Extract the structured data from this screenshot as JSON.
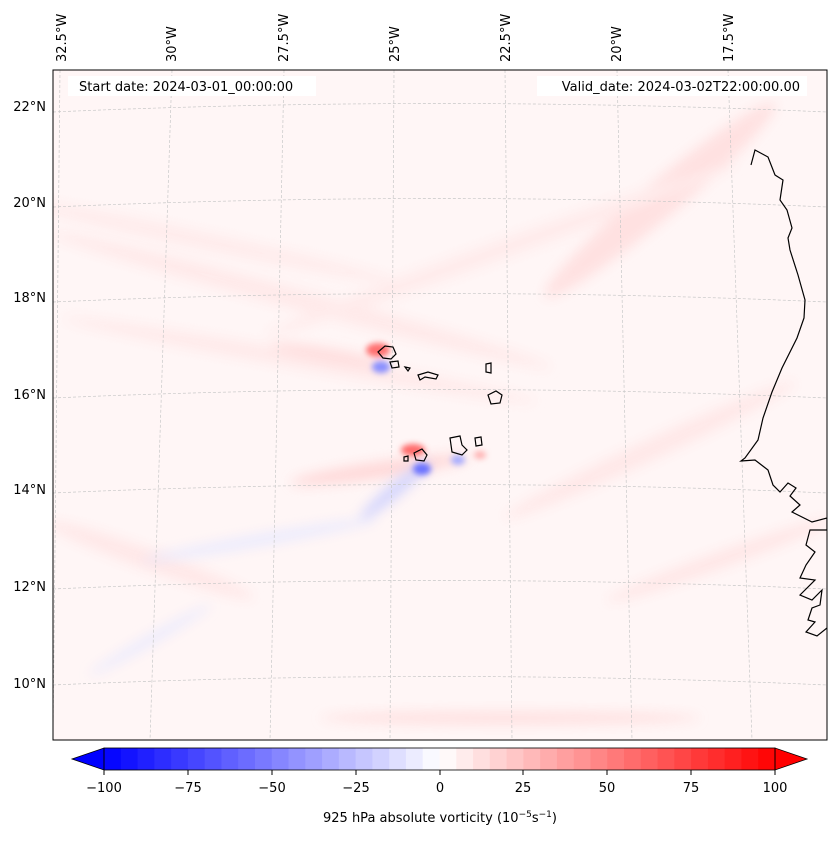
{
  "map": {
    "start_label": "Start date: 2024-03-01_00:00:00",
    "valid_label": "Valid_date: 2024-03-02T22:00:00.00",
    "lon_labels": [
      "32.5°W",
      "30°W",
      "27.5°W",
      "25°W",
      "22.5°W",
      "20°W",
      "17.5°W"
    ],
    "lat_labels": [
      "22°N",
      "20°N",
      "18°N",
      "16°N",
      "14°N",
      "12°N",
      "10°N"
    ]
  },
  "colorbar": {
    "label_prefix": "925 hPa absolute vorticity (10",
    "label_exp1": "−5",
    "label_mid": "s",
    "label_exp2": "−1",
    "label_suffix": ")",
    "ticks": [
      "−100",
      "−75",
      "−50",
      "−25",
      "0",
      "25",
      "50",
      "75",
      "100"
    ],
    "range": [
      -100,
      100
    ],
    "levels": 41,
    "min_color": "#0000ff",
    "max_color": "#ff0000"
  },
  "colors": {
    "background_field": "#fff7f7",
    "coast": "#000000",
    "grid": "#c8c8c8"
  }
}
